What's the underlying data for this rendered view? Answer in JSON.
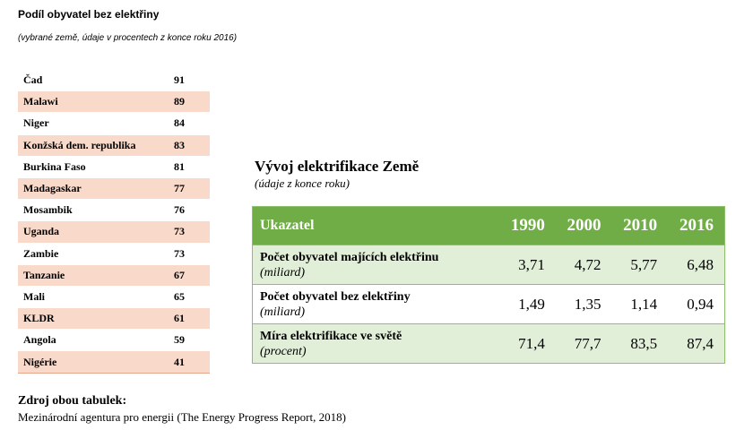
{
  "header": {
    "title": "Podíl obyvatel bez elektřiny",
    "subtitle": "(vybrané země, údaje v procentech z konce roku 2016)"
  },
  "countries_table": {
    "rows": [
      {
        "name": "Čad",
        "value": "91"
      },
      {
        "name": "Malawi",
        "value": "89"
      },
      {
        "name": "Niger",
        "value": "84"
      },
      {
        "name": "Konžská dem. republika",
        "value": "83"
      },
      {
        "name": "Burkina Faso",
        "value": "81"
      },
      {
        "name": "Madagaskar",
        "value": "77"
      },
      {
        "name": "Mosambik",
        "value": "76"
      },
      {
        "name": "Uganda",
        "value": "73"
      },
      {
        "name": "Zambie",
        "value": "73"
      },
      {
        "name": "Tanzanie",
        "value": "67"
      },
      {
        "name": "Mali",
        "value": "65"
      },
      {
        "name": "KLDR",
        "value": "61"
      },
      {
        "name": "Angola",
        "value": "59"
      },
      {
        "name": "Nigérie",
        "value": "41"
      }
    ],
    "shade_color": "#f9d9c9"
  },
  "electrification": {
    "title": "Vývoj elektrifikace Země",
    "subtitle": "(údaje z konce roku)",
    "header": {
      "indicator": "Ukazatel",
      "years": [
        "1990",
        "2000",
        "2010",
        "2016"
      ]
    },
    "rows": [
      {
        "label": "Počet obyvatel majících elektřinu",
        "unit": "(miliard)",
        "values": [
          "3,71",
          "4,72",
          "5,77",
          "6,48"
        ]
      },
      {
        "label": "Počet obyvatel bez elektřiny",
        "unit": "(miliard)",
        "values": [
          "1,49",
          "1,35",
          "1,14",
          "0,94"
        ]
      },
      {
        "label": "Míra elektrifikace ve světě",
        "unit": "(procent)",
        "values": [
          "71,4",
          "77,7",
          "83,5",
          "87,4"
        ]
      }
    ],
    "header_color": "#70ad47",
    "shade_color": "#e2efd8"
  },
  "source": {
    "label": "Zdroj obou tabulek:",
    "text": "Mezinárodní agentura pro energii (The Energy Progress Report, 2018)"
  }
}
